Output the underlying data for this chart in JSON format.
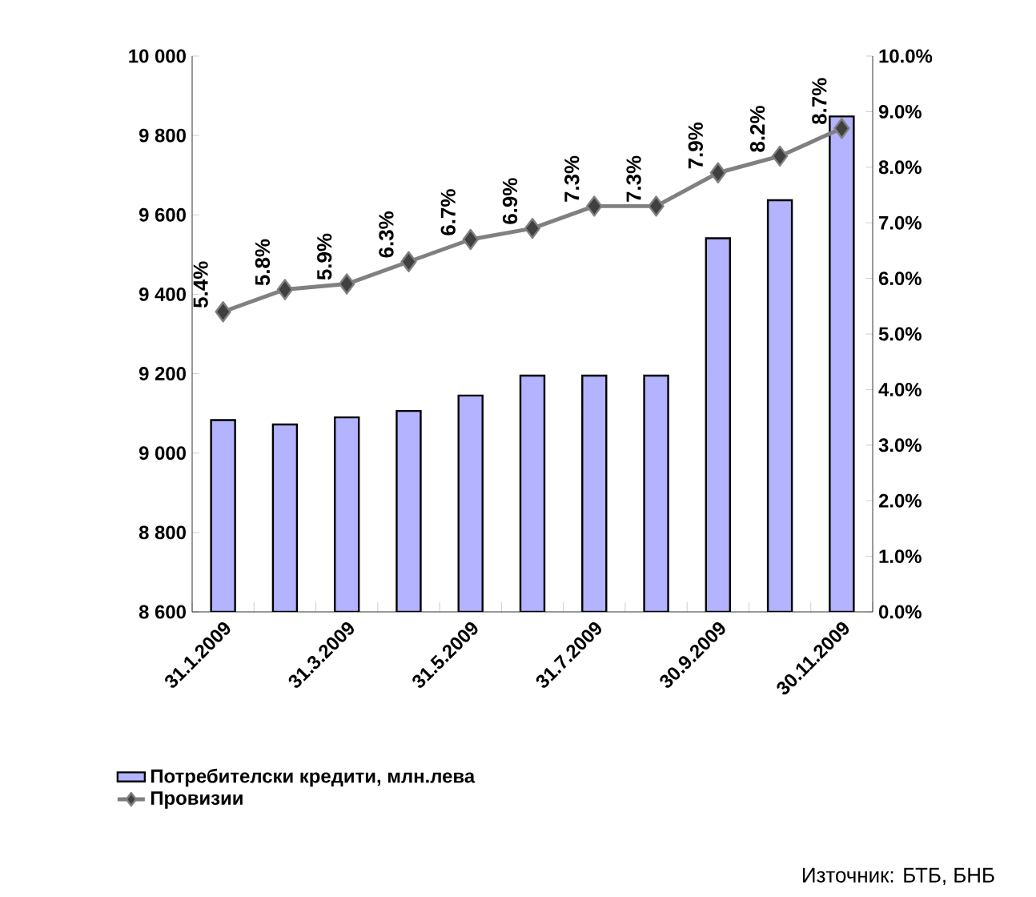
{
  "chart_data": {
    "type": "bar",
    "categories": [
      "31.1.2009",
      null,
      "31.3.2009",
      null,
      "31.5.2009",
      null,
      "31.7.2009",
      null,
      "30.9.2009",
      null,
      "30.11.2009"
    ],
    "series": [
      {
        "name": "Потребителски кредити,  млн.лева",
        "color": "#b3b3ff",
        "values": [
          9083,
          9072,
          9090,
          9106,
          9145,
          9195,
          9195,
          9195,
          9541,
          9637,
          9848
        ]
      },
      {
        "name": "Провизии",
        "type": "line",
        "axis": "y2",
        "color": "#808080",
        "values": [
          5.4,
          5.8,
          5.9,
          6.3,
          6.7,
          6.9,
          7.3,
          7.3,
          7.9,
          8.2,
          8.7
        ],
        "value_labels": [
          "5.4%",
          "5.8%",
          "5.9%",
          "6.3%",
          "6.7%",
          "6.9%",
          "7.3%",
          "7.3%",
          "7.9%",
          "8.2%",
          "8.7%"
        ]
      }
    ],
    "ylim": [
      8600,
      10000
    ],
    "yticks": [
      {
        "value": 8600,
        "label": "8 600"
      },
      {
        "value": 8800,
        "label": "8 800"
      },
      {
        "value": 9000,
        "label": "9 000"
      },
      {
        "value": 9200,
        "label": "9 200"
      },
      {
        "value": 9400,
        "label": "9 400"
      },
      {
        "value": 9600,
        "label": "9 600"
      },
      {
        "value": 9800,
        "label": "9 800"
      },
      {
        "value": 10000,
        "label": "10 000"
      }
    ],
    "y2lim": [
      0,
      10
    ],
    "y2ticks": [
      {
        "value": 0,
        "label": "0.0%"
      },
      {
        "value": 1,
        "label": "1.0%"
      },
      {
        "value": 2,
        "label": "2.0%"
      },
      {
        "value": 3,
        "label": "3.0%"
      },
      {
        "value": 4,
        "label": "4.0%"
      },
      {
        "value": 5,
        "label": "5.0%"
      },
      {
        "value": 6,
        "label": "6.0%"
      },
      {
        "value": 7,
        "label": "7.0%"
      },
      {
        "value": 8,
        "label": "8.0%"
      },
      {
        "value": 9,
        "label": "9.0%"
      },
      {
        "value": 10,
        "label": "10.0%"
      }
    ],
    "marker": "diamond",
    "line_style": "solid",
    "legend": "bottom",
    "grid": false,
    "annotations": [
      "Източник: БТБ, БНБ"
    ]
  }
}
